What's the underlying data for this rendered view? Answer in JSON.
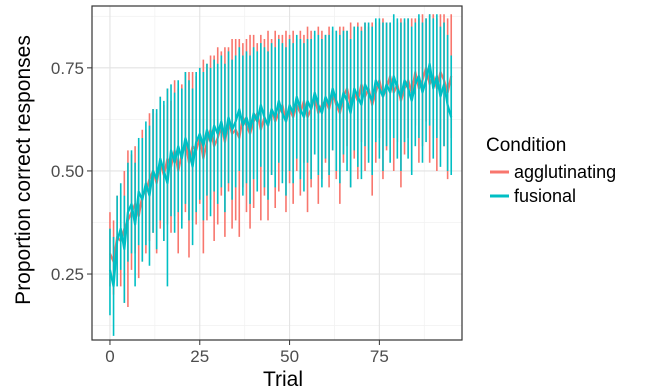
{
  "chart_data": {
    "type": "line",
    "title": "",
    "xlabel": "Trial",
    "ylabel": "Proportion correct responses",
    "xlim": [
      -5,
      98
    ],
    "ylim": [
      0.09,
      0.9
    ],
    "x_ticks": [
      0,
      25,
      50,
      75
    ],
    "x_tick_labels": [
      "0",
      "25",
      "50",
      "75"
    ],
    "y_ticks": [
      0.25,
      0.5,
      0.75
    ],
    "y_tick_labels": [
      "0.25",
      "0.50",
      "0.75"
    ],
    "grid": true,
    "legend_title": "Condition",
    "legend_position": "right",
    "x": [
      0,
      1,
      2,
      3,
      4,
      5,
      6,
      7,
      8,
      9,
      10,
      11,
      12,
      13,
      14,
      15,
      16,
      17,
      18,
      19,
      20,
      21,
      22,
      23,
      24,
      25,
      26,
      27,
      28,
      29,
      30,
      31,
      32,
      33,
      34,
      35,
      36,
      37,
      38,
      39,
      40,
      41,
      42,
      43,
      44,
      45,
      46,
      47,
      48,
      49,
      50,
      51,
      52,
      53,
      54,
      55,
      56,
      57,
      58,
      59,
      60,
      61,
      62,
      63,
      64,
      65,
      66,
      67,
      68,
      69,
      70,
      71,
      72,
      73,
      74,
      75,
      76,
      77,
      78,
      79,
      80,
      81,
      82,
      83,
      84,
      85,
      86,
      87,
      88,
      89,
      90,
      91,
      92,
      93,
      94,
      95
    ],
    "series": [
      {
        "name": "agglutinating",
        "color": "#F8766D",
        "values": [
          0.3,
          0.28,
          0.34,
          0.33,
          0.36,
          0.38,
          0.4,
          0.42,
          0.39,
          0.44,
          0.45,
          0.48,
          0.5,
          0.47,
          0.52,
          0.49,
          0.53,
          0.51,
          0.55,
          0.5,
          0.54,
          0.57,
          0.52,
          0.56,
          0.55,
          0.58,
          0.53,
          0.57,
          0.6,
          0.56,
          0.58,
          0.61,
          0.57,
          0.62,
          0.59,
          0.6,
          0.58,
          0.63,
          0.61,
          0.59,
          0.62,
          0.64,
          0.6,
          0.63,
          0.61,
          0.65,
          0.62,
          0.64,
          0.66,
          0.62,
          0.65,
          0.63,
          0.66,
          0.64,
          0.67,
          0.63,
          0.65,
          0.68,
          0.64,
          0.66,
          0.67,
          0.65,
          0.69,
          0.66,
          0.64,
          0.68,
          0.7,
          0.66,
          0.69,
          0.67,
          0.71,
          0.68,
          0.7,
          0.66,
          0.69,
          0.72,
          0.68,
          0.7,
          0.73,
          0.69,
          0.71,
          0.67,
          0.7,
          0.72,
          0.69,
          0.74,
          0.7,
          0.72,
          0.75,
          0.71,
          0.73,
          0.7,
          0.74,
          0.72,
          0.69,
          0.73
        ],
        "lower": [
          0.22,
          0.2,
          0.26,
          0.22,
          0.18,
          0.17,
          0.26,
          0.3,
          0.24,
          0.28,
          0.3,
          0.33,
          0.35,
          0.3,
          0.36,
          0.33,
          0.37,
          0.35,
          0.39,
          0.3,
          0.38,
          0.4,
          0.29,
          0.38,
          0.37,
          0.42,
          0.3,
          0.38,
          0.43,
          0.33,
          0.37,
          0.44,
          0.34,
          0.45,
          0.36,
          0.38,
          0.34,
          0.46,
          0.4,
          0.36,
          0.41,
          0.48,
          0.38,
          0.44,
          0.38,
          0.49,
          0.41,
          0.45,
          0.5,
          0.4,
          0.47,
          0.42,
          0.5,
          0.44,
          0.52,
          0.4,
          0.46,
          0.54,
          0.42,
          0.48,
          0.52,
          0.46,
          0.55,
          0.48,
          0.42,
          0.52,
          0.56,
          0.46,
          0.53,
          0.48,
          0.57,
          0.5,
          0.55,
          0.44,
          0.52,
          0.58,
          0.48,
          0.55,
          0.6,
          0.5,
          0.57,
          0.46,
          0.54,
          0.58,
          0.5,
          0.61,
          0.52,
          0.56,
          0.62,
          0.52,
          0.58,
          0.5,
          0.6,
          0.56,
          0.48,
          0.58
        ],
        "upper": [
          0.4,
          0.38,
          0.44,
          0.45,
          0.5,
          0.55,
          0.54,
          0.56,
          0.56,
          0.6,
          0.6,
          0.64,
          0.65,
          0.64,
          0.68,
          0.66,
          0.7,
          0.67,
          0.72,
          0.7,
          0.71,
          0.74,
          0.74,
          0.74,
          0.73,
          0.75,
          0.77,
          0.76,
          0.78,
          0.78,
          0.8,
          0.79,
          0.8,
          0.8,
          0.82,
          0.82,
          0.82,
          0.81,
          0.82,
          0.83,
          0.83,
          0.81,
          0.83,
          0.82,
          0.84,
          0.82,
          0.84,
          0.83,
          0.83,
          0.84,
          0.83,
          0.84,
          0.82,
          0.84,
          0.83,
          0.85,
          0.84,
          0.83,
          0.85,
          0.84,
          0.83,
          0.85,
          0.84,
          0.84,
          0.85,
          0.85,
          0.84,
          0.86,
          0.85,
          0.86,
          0.85,
          0.86,
          0.85,
          0.86,
          0.86,
          0.86,
          0.87,
          0.86,
          0.86,
          0.87,
          0.86,
          0.87,
          0.86,
          0.87,
          0.87,
          0.87,
          0.87,
          0.88,
          0.87,
          0.88,
          0.88,
          0.87,
          0.88,
          0.88,
          0.87,
          0.88
        ]
      },
      {
        "name": "fusional",
        "color": "#00BFC4",
        "values": [
          0.26,
          0.22,
          0.33,
          0.36,
          0.31,
          0.4,
          0.42,
          0.37,
          0.45,
          0.43,
          0.47,
          0.44,
          0.5,
          0.48,
          0.53,
          0.5,
          0.47,
          0.55,
          0.52,
          0.56,
          0.53,
          0.58,
          0.55,
          0.51,
          0.57,
          0.59,
          0.56,
          0.6,
          0.57,
          0.61,
          0.59,
          0.62,
          0.58,
          0.63,
          0.6,
          0.62,
          0.65,
          0.61,
          0.63,
          0.6,
          0.64,
          0.62,
          0.66,
          0.63,
          0.61,
          0.65,
          0.63,
          0.67,
          0.64,
          0.62,
          0.66,
          0.64,
          0.68,
          0.65,
          0.63,
          0.67,
          0.65,
          0.69,
          0.66,
          0.64,
          0.68,
          0.66,
          0.7,
          0.67,
          0.65,
          0.69,
          0.67,
          0.64,
          0.7,
          0.68,
          0.66,
          0.71,
          0.69,
          0.67,
          0.72,
          0.7,
          0.68,
          0.71,
          0.69,
          0.73,
          0.7,
          0.68,
          0.72,
          0.7,
          0.67,
          0.71,
          0.73,
          0.69,
          0.72,
          0.76,
          0.7,
          0.73,
          0.68,
          0.71,
          0.66,
          0.63
        ],
        "lower": [
          0.15,
          0.1,
          0.22,
          0.26,
          0.18,
          0.28,
          0.3,
          0.22,
          0.32,
          0.28,
          0.32,
          0.27,
          0.35,
          0.31,
          0.38,
          0.33,
          0.22,
          0.39,
          0.35,
          0.4,
          0.36,
          0.42,
          0.38,
          0.32,
          0.4,
          0.43,
          0.38,
          0.44,
          0.39,
          0.45,
          0.42,
          0.46,
          0.4,
          0.47,
          0.43,
          0.46,
          0.5,
          0.44,
          0.47,
          0.42,
          0.48,
          0.45,
          0.51,
          0.46,
          0.43,
          0.49,
          0.46,
          0.52,
          0.47,
          0.44,
          0.5,
          0.47,
          0.53,
          0.48,
          0.45,
          0.52,
          0.48,
          0.54,
          0.49,
          0.46,
          0.53,
          0.49,
          0.55,
          0.5,
          0.47,
          0.54,
          0.5,
          0.46,
          0.55,
          0.51,
          0.48,
          0.56,
          0.52,
          0.49,
          0.57,
          0.53,
          0.5,
          0.56,
          0.52,
          0.58,
          0.53,
          0.5,
          0.57,
          0.53,
          0.49,
          0.56,
          0.58,
          0.52,
          0.57,
          0.61,
          0.53,
          0.58,
          0.51,
          0.56,
          0.5,
          0.49
        ],
        "upper": [
          0.36,
          0.34,
          0.44,
          0.47,
          0.44,
          0.52,
          0.55,
          0.52,
          0.58,
          0.58,
          0.62,
          0.61,
          0.65,
          0.65,
          0.68,
          0.67,
          0.7,
          0.71,
          0.69,
          0.72,
          0.7,
          0.74,
          0.72,
          0.7,
          0.74,
          0.75,
          0.74,
          0.76,
          0.75,
          0.77,
          0.76,
          0.78,
          0.76,
          0.79,
          0.77,
          0.78,
          0.8,
          0.78,
          0.79,
          0.78,
          0.8,
          0.79,
          0.81,
          0.8,
          0.79,
          0.81,
          0.8,
          0.82,
          0.81,
          0.8,
          0.82,
          0.81,
          0.83,
          0.82,
          0.81,
          0.82,
          0.82,
          0.84,
          0.83,
          0.82,
          0.83,
          0.83,
          0.85,
          0.84,
          0.83,
          0.84,
          0.84,
          0.82,
          0.85,
          0.85,
          0.84,
          0.86,
          0.86,
          0.85,
          0.87,
          0.87,
          0.86,
          0.86,
          0.86,
          0.88,
          0.87,
          0.86,
          0.87,
          0.87,
          0.85,
          0.86,
          0.88,
          0.86,
          0.87,
          0.88,
          0.87,
          0.88,
          0.85,
          0.86,
          0.83,
          0.78
        ]
      }
    ]
  }
}
